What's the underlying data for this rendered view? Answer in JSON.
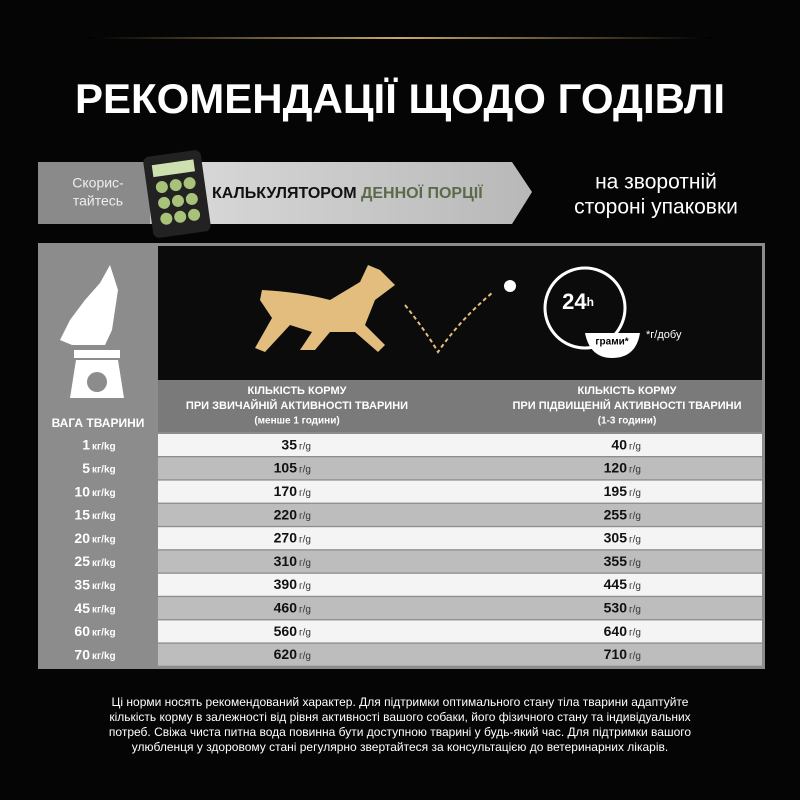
{
  "header": {
    "title": "РЕКОМЕНДАЦІЇ ЩОДО ГОДІВЛІ"
  },
  "banner": {
    "try_line1": "Скорис-",
    "try_line2": "тайтесь",
    "calc_strong": "КАЛЬКУЛЯТОРОМ",
    "calc_rest": "ДЕННОЇ ПОРЦІЇ",
    "side_line1": "на зворотній",
    "side_line2": "стороні упаковки"
  },
  "icons": {
    "clock_label": "24",
    "clock_sub": "h",
    "bowl_label": "грами*",
    "per_day": "*г/добу"
  },
  "table": {
    "weight_header": "ВАГА ТВАРИНИ",
    "normal_header": [
      "КІЛЬКІСТЬ КОРМУ",
      "ПРИ ЗВИЧАЙНІЙ АКТИВНОСТІ ТВАРИНИ",
      "(менше 1 години)"
    ],
    "high_header": [
      "КІЛЬКІСТЬ КОРМУ",
      "ПРИ ПІДВИЩЕНІЙ АКТИВНОСТІ ТВАРИНИ",
      "(1-3 години)"
    ],
    "weight_unit": "кг/kg",
    "amount_unit": "г/g",
    "rows": [
      [
        "1",
        "35",
        "40"
      ],
      [
        "5",
        "105",
        "120"
      ],
      [
        "10",
        "170",
        "195"
      ],
      [
        "15",
        "220",
        "255"
      ],
      [
        "20",
        "270",
        "305"
      ],
      [
        "25",
        "310",
        "355"
      ],
      [
        "35",
        "390",
        "445"
      ],
      [
        "45",
        "460",
        "530"
      ],
      [
        "60",
        "560",
        "640"
      ],
      [
        "70",
        "620",
        "710"
      ]
    ]
  },
  "footnote": [
    "Ці норми носять рекомендований характер. Для підтримки оптимального стану тіла тварини адаптуйте",
    "кількість корму в залежності від рівня активності вашого собаки, його фізичного стану та індивідуальних",
    "потреб. Свіжа чиста питна вода повинна бути доступною тварині у будь-який час. Для підтримки вашого",
    "улюбленця у здоровому стані регулярно звертайтеся за консультацією до ветеринарних лікарів."
  ]
}
